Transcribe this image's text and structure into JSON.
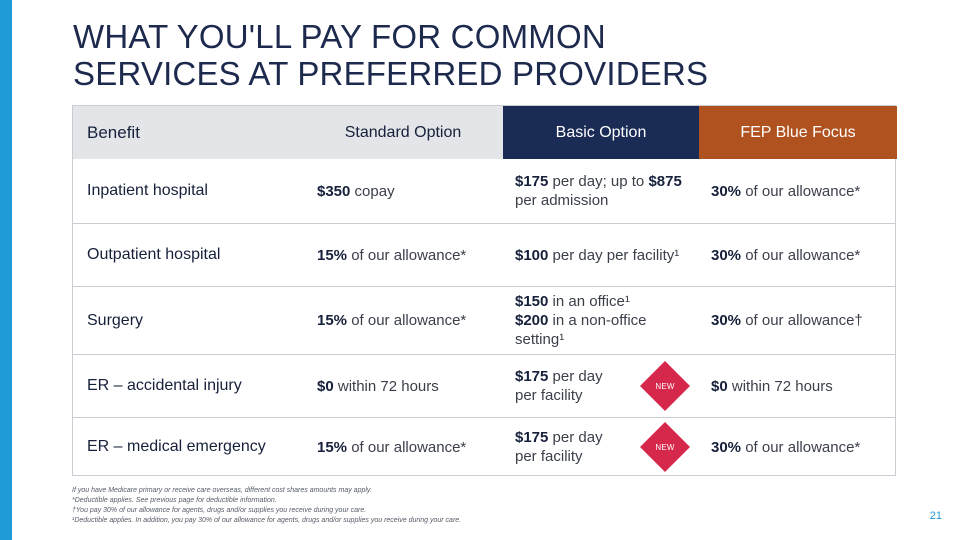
{
  "title_line1": "WHAT YOU'LL PAY FOR COMMON",
  "title_line2": "SERVICES AT  PREFERRED PROVIDERS",
  "headers": {
    "benefit": "Benefit",
    "standard": "Standard Option",
    "basic": "Basic Option",
    "focus": "FEP Blue Focus"
  },
  "colors": {
    "basic_header": "#1a2b56",
    "focus_header": "#b0521f",
    "new_badge": "#d6284b",
    "accent_bar": "#1f9bd7"
  },
  "rows": [
    {
      "benefit": "Inpatient hospital",
      "standard": {
        "bold": "$350",
        "text": " copay"
      },
      "basic": {
        "bold1": "$175",
        "text1": " per day; up to ",
        "bold2": "$875",
        "text2": " per admission"
      },
      "focus": {
        "bold": "30%",
        "text": " of our allowance*"
      }
    },
    {
      "benefit": "Outpatient hospital",
      "standard": {
        "bold": "15%",
        "text": " of our allowance*"
      },
      "basic": {
        "bold1": "$100",
        "text1": " per day per facility¹"
      },
      "focus": {
        "bold": "30%",
        "text": " of our allowance*"
      }
    },
    {
      "benefit": "Surgery",
      "standard": {
        "bold": "15%",
        "text": " of our allowance*"
      },
      "basic": {
        "bold1": "$150",
        "text1": " in an office¹",
        "bold2": "$200",
        "text2": " in a non-office setting¹"
      },
      "focus": {
        "bold": "30%",
        "text": " of our allowance†"
      }
    },
    {
      "benefit": "ER – accidental injury",
      "standard": {
        "bold": "$0",
        "text": " within 72 hours"
      },
      "basic": {
        "bold1": "$175",
        "text1": " per day per facility",
        "badge": "NEW"
      },
      "focus": {
        "bold": "$0",
        "text": " within 72 hours"
      }
    },
    {
      "benefit": "ER – medical emergency",
      "standard": {
        "bold": "15%",
        "text": " of our allowance*"
      },
      "basic": {
        "bold1": "$175",
        "text1": " per day per facility",
        "badge": "NEW"
      },
      "focus": {
        "bold": "30%",
        "text": " of our allowance*"
      }
    }
  ],
  "footnotes": [
    "If you have Medicare primary or receive care overseas, different cost shares amounts may apply.",
    "*Deductible applies. See previous page for deductible information.",
    "†You pay 30% of our allowance for agents, drugs and/or supplies you receive during your care.",
    "¹Deductible applies. In addition, you pay 30% of our allowance for agents, drugs and/or supplies you receive during your care."
  ],
  "page_number": "21"
}
